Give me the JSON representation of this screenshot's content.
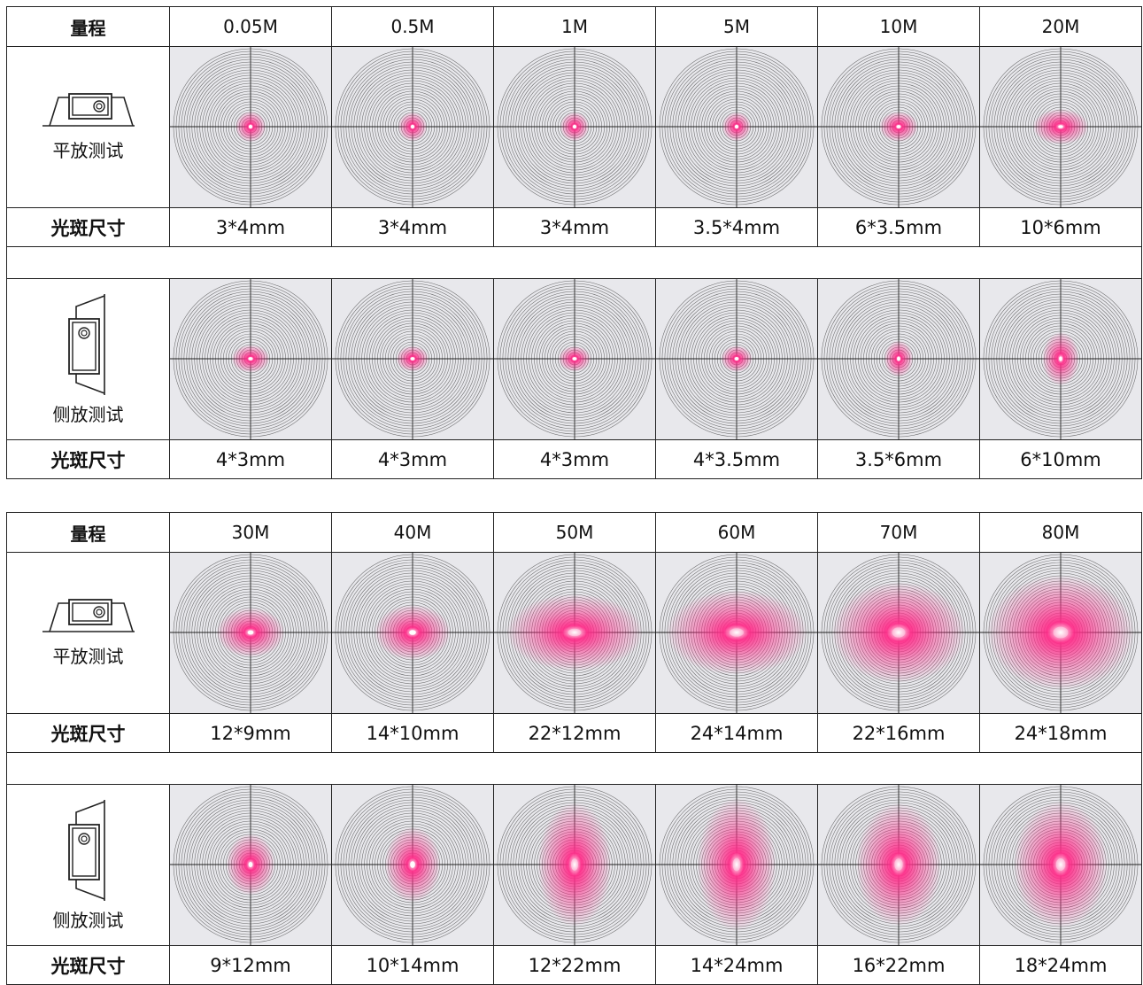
{
  "tables": [
    {
      "header_label": "量程",
      "ranges": [
        "0.05M",
        "0.5M",
        "1M",
        "5M",
        "10M",
        "20M"
      ],
      "sections": [
        {
          "orientation": "flat",
          "mode_label": "平放测试",
          "size_label": "光斑尺寸",
          "spot_sizes": [
            "3*4mm",
            "3*4mm",
            "3*4mm",
            "3.5*4mm",
            "6*3.5mm",
            "10*6mm"
          ]
        },
        {
          "orientation": "side",
          "mode_label": "侧放测试",
          "size_label": "光斑尺寸",
          "spot_sizes": [
            "4*3mm",
            "4*3mm",
            "4*3mm",
            "4*3.5mm",
            "3.5*6mm",
            "6*10mm"
          ]
        }
      ]
    },
    {
      "header_label": "量程",
      "ranges": [
        "30M",
        "40M",
        "50M",
        "60M",
        "70M",
        "80M"
      ],
      "sections": [
        {
          "orientation": "flat",
          "mode_label": "平放测试",
          "size_label": "光斑尺寸",
          "spot_sizes": [
            "12*9mm",
            "14*10mm",
            "22*12mm",
            "24*14mm",
            "22*16mm",
            "24*18mm"
          ]
        },
        {
          "orientation": "side",
          "mode_label": "侧放测试",
          "size_label": "光斑尺寸",
          "spot_sizes": [
            "9*12mm",
            "10*14mm",
            "12*22mm",
            "14*24mm",
            "16*22mm",
            "18*24mm"
          ]
        }
      ]
    }
  ],
  "colors": {
    "laser_spot": "#ff2e8a",
    "target_lines": "#3a3a3a",
    "photo_bg": "#e8e8ec"
  }
}
